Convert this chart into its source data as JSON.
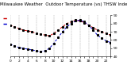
{
  "title": "Milwaukee Weather  Outdoor Temperature (vs) THSW Index per Hour (Last 24 Hours)",
  "background_color": "#ffffff",
  "grid_color": "#999999",
  "hours": [
    0,
    1,
    2,
    3,
    4,
    5,
    6,
    7,
    8,
    9,
    10,
    11,
    12,
    13,
    14,
    15,
    16,
    17,
    18,
    19,
    20,
    21,
    22,
    23
  ],
  "temp": [
    78,
    76,
    74,
    72,
    71,
    70,
    68,
    67,
    66,
    65,
    68,
    72,
    76,
    80,
    82,
    84,
    83,
    81,
    78,
    75,
    72,
    70,
    68,
    66
  ],
  "thsw": [
    55,
    53,
    51,
    50,
    49,
    48,
    47,
    46,
    47,
    50,
    56,
    63,
    70,
    76,
    80,
    83,
    84,
    82,
    78,
    72,
    66,
    62,
    59,
    57
  ],
  "temp_color": "#cc0000",
  "thsw_color": "#0000cc",
  "dot_color": "#000000",
  "ylim_min": 40,
  "ylim_max": 90,
  "yticks": [
    40,
    50,
    60,
    70,
    80,
    90
  ],
  "title_fontsize": 4.0,
  "tick_fontsize": 3.2,
  "line_width": 0.7,
  "marker_size": 1.2,
  "fig_width": 1.6,
  "fig_height": 0.87,
  "dpi": 100
}
